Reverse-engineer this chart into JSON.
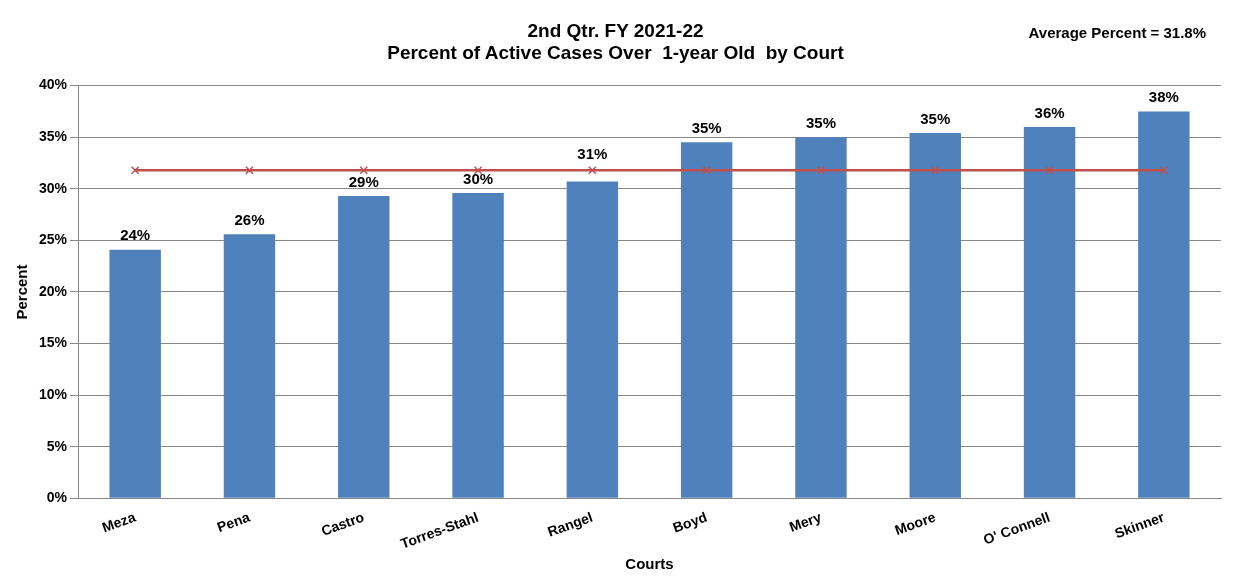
{
  "chart_data": {
    "type": "bar",
    "title": "2nd Qtr. FY 2021-22",
    "subtitle": "Percent of Active Cases Over  1-year Old  by Court",
    "xlabel": "Courts",
    "ylabel": "Percent",
    "annotations": [
      "Average Percent = 31.8%"
    ],
    "categories": [
      "Meza",
      "Pena",
      "Castro",
      "Torres-Stahl",
      "Rangel",
      "Boyd",
      "Mery",
      "Moore",
      "O' Connell",
      "Skinner"
    ],
    "series": [
      {
        "color": "#4f81bd",
        "values": [
          24.1,
          25.6,
          29.3,
          29.6,
          30.7,
          34.5,
          35.0,
          35.4,
          36.0,
          37.5
        ],
        "value_labels": [
          "24%",
          "26%",
          "29%",
          "30%",
          "31%",
          "35%",
          "35%",
          "35%",
          "36%",
          "38%"
        ]
      },
      {
        "type": "line",
        "color": "#c0504d",
        "values": [
          31.8,
          31.8,
          31.8,
          31.8,
          31.8,
          31.8,
          31.8,
          31.8,
          31.8,
          31.8
        ]
      }
    ],
    "ylim": [
      0,
      40
    ],
    "yticks": [
      {
        "value": 0,
        "label": "0%"
      },
      {
        "value": 5,
        "label": "5%"
      },
      {
        "value": 10,
        "label": "10%"
      },
      {
        "value": 15,
        "label": "15%"
      },
      {
        "value": 20,
        "label": "20%"
      },
      {
        "value": 25,
        "label": "25%"
      },
      {
        "value": 30,
        "label": "30%"
      },
      {
        "value": 35,
        "label": "35%"
      },
      {
        "value": 40,
        "label": "40%"
      }
    ],
    "grid": "y",
    "legend": false,
    "marker": "cross",
    "line_style": "solid"
  }
}
